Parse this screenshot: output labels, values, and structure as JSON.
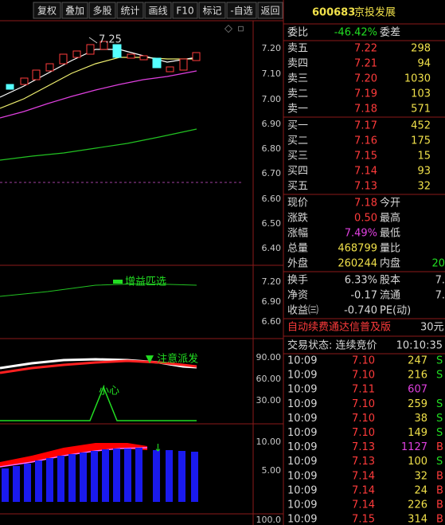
{
  "toolbar": [
    "复权",
    "叠加",
    "多股",
    "统计",
    "画线",
    "F10",
    "标记",
    "-自选",
    "返回"
  ],
  "chart": {
    "price_axis": [
      "7.20",
      "7.10",
      "7.00",
      "6.90",
      "6.80",
      "6.70",
      "6.60",
      "6.50",
      "6.40"
    ],
    "high_label": "7.25",
    "panel2_axis": [
      "7.20",
      "6.90",
      "6.60"
    ],
    "panel2_label": "增益匹选",
    "panel3_axis": [
      "90.00",
      "60.00",
      "30.00"
    ],
    "panel3_labels": [
      "▼ 注意派发",
      "小心"
    ],
    "panel4_axis": [
      "10.00",
      "5.00"
    ],
    "panel5_axis": [
      "100.0"
    ]
  },
  "quote": {
    "code": "600683",
    "name": "京投发展",
    "weibi": [
      "委比",
      "-46.42%",
      "委差"
    ],
    "orders": [
      [
        "卖五",
        "7.22",
        "298"
      ],
      [
        "卖四",
        "7.21",
        "94"
      ],
      [
        "卖三",
        "7.20",
        "1030"
      ],
      [
        "卖二",
        "7.19",
        "103"
      ],
      [
        "卖一",
        "7.18",
        "571"
      ],
      [
        "买一",
        "7.17",
        "452"
      ],
      [
        "买二",
        "7.16",
        "175"
      ],
      [
        "买三",
        "7.15",
        "15"
      ],
      [
        "买四",
        "7.14",
        "93"
      ],
      [
        "买五",
        "7.13",
        "32"
      ]
    ],
    "stats": [
      [
        "现价",
        "7.18",
        "今开"
      ],
      [
        "涨跌",
        "0.50",
        "最高"
      ],
      [
        "涨幅",
        "7.49%",
        "最低"
      ],
      [
        "总量",
        "468799",
        "量比"
      ],
      [
        "外盘",
        "260244",
        "内盘",
        "20"
      ]
    ],
    "stats2": [
      [
        "换手",
        "6.33%",
        "股本",
        "7."
      ],
      [
        "净资",
        "-0.17",
        "流通",
        "7."
      ],
      [
        "收益㈢",
        "-0.740",
        "PE(动)"
      ]
    ],
    "ad": [
      "自动续费通达信普及版",
      "30元"
    ],
    "status": [
      "交易状态: 连续竞价",
      "10:10:35"
    ],
    "ticks": [
      [
        "10:09",
        "7.10",
        "247",
        "S"
      ],
      [
        "10:09",
        "7.10",
        "216",
        "S"
      ],
      [
        "10:09",
        "7.11",
        "607"
      ],
      [
        "10:09",
        "7.10",
        "259",
        "S"
      ],
      [
        "10:09",
        "7.10",
        "38",
        "S"
      ],
      [
        "10:09",
        "7.10",
        "149",
        "S"
      ],
      [
        "10:09",
        "7.13",
        "1127",
        "B"
      ],
      [
        "10:09",
        "7.13",
        "100",
        "S"
      ],
      [
        "10:09",
        "7.14",
        "32",
        "B"
      ],
      [
        "10:09",
        "7.14",
        "24",
        "B"
      ],
      [
        "10:09",
        "7.14",
        "226",
        "B"
      ],
      [
        "10:09",
        "7.15",
        "314",
        "B"
      ]
    ]
  }
}
